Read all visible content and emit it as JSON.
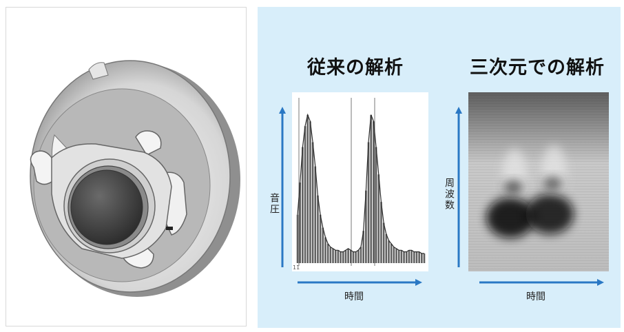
{
  "left_title": "従来の解析",
  "right_title": "三次元での解析",
  "left_ylabel": "音圧",
  "left_xlabel": "時間",
  "left_origin_tick": "11",
  "right_ylabel": "周波数",
  "right_xlabel": "時間",
  "colors": {
    "panel_bg": "#d8eefa",
    "arrow": "#2a78c4",
    "waveform": "#2b2b2b"
  },
  "chart_data": [
    {
      "type": "line",
      "title": "従来の解析",
      "xlabel": "時間",
      "ylabel": "音圧",
      "x": [
        0,
        2,
        4,
        6,
        8,
        10,
        12,
        14,
        16,
        18,
        20,
        22,
        24,
        26,
        28,
        30,
        32,
        34,
        36,
        38,
        40,
        42,
        44,
        46,
        48,
        50,
        52,
        54,
        56,
        58,
        60,
        62,
        64,
        66,
        68,
        70,
        72,
        74,
        76,
        78,
        80,
        82,
        84,
        86,
        88,
        90,
        92,
        94,
        96,
        98,
        100
      ],
      "series": [
        {
          "values": [
            30,
            50,
            72,
            85,
            92,
            88,
            75,
            60,
            42,
            30,
            22,
            16,
            12,
            10,
            9,
            8,
            8,
            7,
            7,
            8,
            9,
            8,
            7,
            7,
            8,
            10,
            20,
            45,
            75,
            92,
            88,
            72,
            55,
            38,
            25,
            18,
            14,
            12,
            10,
            9,
            8,
            8,
            7,
            7,
            8,
            8,
            7,
            7,
            7,
            6,
            6
          ]
        }
      ],
      "ylim": [
        0,
        100
      ],
      "grid": false
    },
    {
      "type": "heatmap",
      "title": "三次元での解析",
      "xlabel": "時間",
      "ylabel": "周波数",
      "blobs": [
        {
          "time": 0.3,
          "frequency": 0.3,
          "intensity": 0.9
        },
        {
          "time": 0.58,
          "frequency": 0.32,
          "intensity": 0.85
        }
      ]
    }
  ]
}
